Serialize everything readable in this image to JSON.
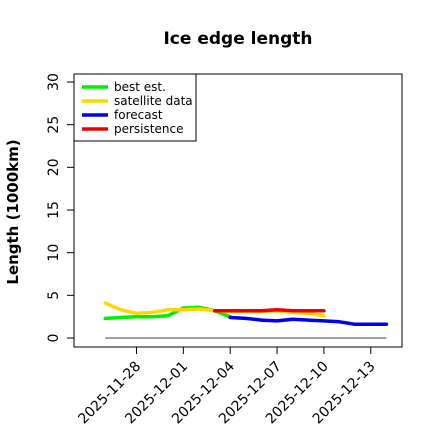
{
  "chart_data": {
    "type": "line",
    "title": "Ice edge length",
    "xlabel": "",
    "ylabel": "Length (1000km)",
    "ylim": [
      0,
      30
    ],
    "yticks": [
      0,
      5,
      10,
      15,
      20,
      25,
      30
    ],
    "xlim": [
      "2025-11-24",
      "2025-12-15"
    ],
    "xtick_labels": [
      "2025-11-28",
      "2025-12-01",
      "2025-12-04",
      "2025-12-07",
      "2025-12-10",
      "2025-12-13"
    ],
    "highlight_tick": "2025-12-04",
    "highlight_color": "#228B22",
    "grid": false,
    "legend_position": "top-left",
    "baseline": {
      "value": 0,
      "from": "2025-11-26",
      "to": "2025-12-14",
      "color": "#808080"
    },
    "series": [
      {
        "name": "best est.",
        "color": "#00ee00",
        "x": [
          "2025-11-26",
          "2025-11-27",
          "2025-11-28",
          "2025-11-29",
          "2025-11-30",
          "2025-12-01",
          "2025-12-02",
          "2025-12-03",
          "2025-12-04"
        ],
        "y": [
          2.3,
          2.4,
          2.5,
          2.5,
          2.6,
          3.5,
          3.6,
          3.2,
          2.5
        ]
      },
      {
        "name": "satellite data",
        "color": "#ffd700",
        "x": [
          "2025-11-26",
          "2025-11-27",
          "2025-11-28",
          "2025-11-29",
          "2025-11-30",
          "2025-12-01",
          "2025-12-02",
          "2025-12-03",
          "2025-12-04",
          "2025-12-05",
          "2025-12-06",
          "2025-12-07",
          "2025-12-08",
          "2025-12-09",
          "2025-12-10"
        ],
        "y": [
          4.1,
          3.3,
          2.9,
          3.0,
          3.3,
          3.3,
          3.4,
          3.2,
          3.1,
          3.1,
          3.1,
          3.2,
          3.0,
          2.9,
          2.6
        ]
      },
      {
        "name": "forecast",
        "color": "#0000ee",
        "x": [
          "2025-12-04",
          "2025-12-05",
          "2025-12-06",
          "2025-12-07",
          "2025-12-08",
          "2025-12-09",
          "2025-12-10",
          "2025-12-11",
          "2025-12-12",
          "2025-12-13",
          "2025-12-14"
        ],
        "y": [
          2.4,
          2.3,
          2.1,
          2.0,
          2.2,
          2.1,
          2.0,
          1.9,
          1.6,
          1.6,
          1.6
        ]
      },
      {
        "name": "persistence",
        "color": "#ee0000",
        "x": [
          "2025-12-03",
          "2025-12-04",
          "2025-12-05",
          "2025-12-06",
          "2025-12-07",
          "2025-12-08",
          "2025-12-09",
          "2025-12-10"
        ],
        "y": [
          3.2,
          3.2,
          3.2,
          3.2,
          3.3,
          3.2,
          3.2,
          3.2
        ]
      }
    ]
  }
}
